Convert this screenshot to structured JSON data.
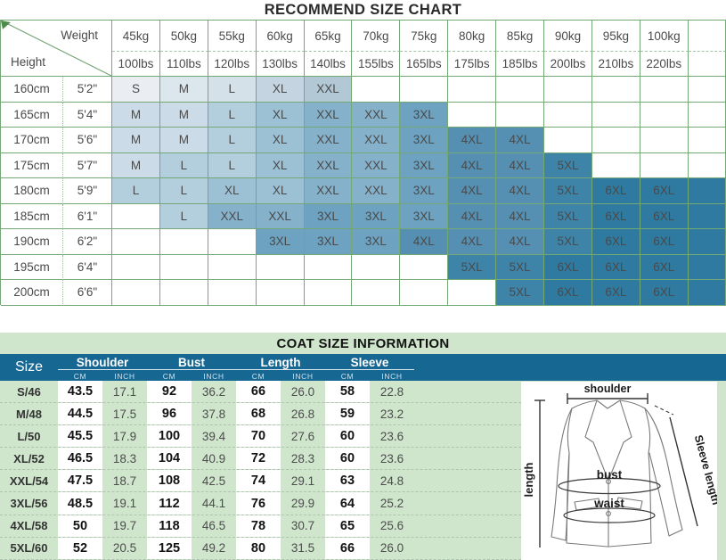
{
  "recommend_chart": {
    "title": "RECOMMEND SIZE CHART",
    "corner": {
      "weight_label": "Weight",
      "height_label": "Height"
    },
    "weight_columns": [
      {
        "kg": "45kg",
        "lbs": "100lbs"
      },
      {
        "kg": "50kg",
        "lbs": "110lbs"
      },
      {
        "kg": "55kg",
        "lbs": "120lbs"
      },
      {
        "kg": "60kg",
        "lbs": "130lbs"
      },
      {
        "kg": "65kg",
        "lbs": "140lbs"
      },
      {
        "kg": "70kg",
        "lbs": "155lbs"
      },
      {
        "kg": "75kg",
        "lbs": "165lbs"
      },
      {
        "kg": "80kg",
        "lbs": "175lbs"
      },
      {
        "kg": "85kg",
        "lbs": "185lbs"
      },
      {
        "kg": "90kg",
        "lbs": "200lbs"
      },
      {
        "kg": "95kg",
        "lbs": "210lbs"
      },
      {
        "kg": "100kg",
        "lbs": "220lbs"
      }
    ],
    "height_rows": [
      {
        "cm": "160cm",
        "ft": "5'2\"",
        "sizes": [
          "S",
          "M",
          "L",
          "XL",
          "XXL",
          "",
          "",
          "",
          "",
          "",
          "",
          ""
        ],
        "tail_filled": false
      },
      {
        "cm": "165cm",
        "ft": "5'4\"",
        "sizes": [
          "M",
          "M",
          "L",
          "XL",
          "XXL",
          "XXL",
          "3XL",
          "",
          "",
          "",
          "",
          ""
        ],
        "tail_filled": false
      },
      {
        "cm": "170cm",
        "ft": "5'6\"",
        "sizes": [
          "M",
          "M",
          "L",
          "XL",
          "XXL",
          "XXL",
          "3XL",
          "4XL",
          "4XL",
          "",
          "",
          ""
        ],
        "tail_filled": false
      },
      {
        "cm": "175cm",
        "ft": "5'7\"",
        "sizes": [
          "M",
          "L",
          "L",
          "XL",
          "XXL",
          "XXL",
          "3XL",
          "4XL",
          "4XL",
          "5XL",
          "",
          ""
        ],
        "tail_filled": false
      },
      {
        "cm": "180cm",
        "ft": "5'9\"",
        "sizes": [
          "L",
          "L",
          "XL",
          "XL",
          "XXL",
          "XXL",
          "3XL",
          "4XL",
          "4XL",
          "5XL",
          "6XL",
          "6XL"
        ],
        "tail_filled": true
      },
      {
        "cm": "185cm",
        "ft": "6'1\"",
        "sizes": [
          "",
          "L",
          "XXL",
          "XXL",
          "3XL",
          "3XL",
          "3XL",
          "4XL",
          "4XL",
          "5XL",
          "6XL",
          "6XL"
        ],
        "tail_filled": true
      },
      {
        "cm": "190cm",
        "ft": "6'2\"",
        "sizes": [
          "",
          "",
          "",
          "3XL",
          "3XL",
          "3XL",
          "4XL",
          "4XL",
          "4XL",
          "5XL",
          "6XL",
          "6XL"
        ],
        "tail_filled": true
      },
      {
        "cm": "195cm",
        "ft": "6'4\"",
        "sizes": [
          "",
          "",
          "",
          "",
          "",
          "",
          "",
          "5XL",
          "5XL",
          "6XL",
          "6XL",
          "6XL"
        ],
        "tail_filled": true
      },
      {
        "cm": "200cm",
        "ft": "6'6\"",
        "sizes": [
          "",
          "",
          "",
          "",
          "",
          "",
          "",
          "",
          "5XL",
          "6XL",
          "6XL",
          "6XL"
        ],
        "tail_filled": true
      }
    ],
    "size_cell_colors": {
      "S": "#e9eef3",
      "M": "#cbdce8",
      "L": "#b3cedd",
      "XL": "#9cc0d4",
      "XXL": "#86b1ca",
      "3XL": "#6da2c1",
      "4XL": "#5590b3",
      "5XL": "#3e84a9",
      "6XL": "#2f7aa0"
    },
    "first_row_cell_colors": {
      "S": "#eaeef2",
      "M": "#dce6ed",
      "L": "#d5e1e9",
      "XL": "#c4d5e1",
      "XXL": "#b2c8d5"
    }
  },
  "coat_table": {
    "title": "COAT SIZE INFORMATION",
    "size_header": "Size",
    "unit_cm": "CM",
    "unit_inch": "INCH",
    "measure_groups": [
      "Shoulder",
      "Bust",
      "Length",
      "Sleeve"
    ],
    "rows": [
      {
        "size": "S/46",
        "values": [
          "43.5",
          "17.1",
          "92",
          "36.2",
          "66",
          "26.0",
          "58",
          "22.8"
        ]
      },
      {
        "size": "M/48",
        "values": [
          "44.5",
          "17.5",
          "96",
          "37.8",
          "68",
          "26.8",
          "59",
          "23.2"
        ]
      },
      {
        "size": "L/50",
        "values": [
          "45.5",
          "17.9",
          "100",
          "39.4",
          "70",
          "27.6",
          "60",
          "23.6"
        ]
      },
      {
        "size": "XL/52",
        "values": [
          "46.5",
          "18.3",
          "104",
          "40.9",
          "72",
          "28.3",
          "60",
          "23.6"
        ]
      },
      {
        "size": "XXL/54",
        "values": [
          "47.5",
          "18.7",
          "108",
          "42.5",
          "74",
          "29.1",
          "63",
          "24.8"
        ]
      },
      {
        "size": "3XL/56",
        "values": [
          "48.5",
          "19.1",
          "112",
          "44.1",
          "76",
          "29.9",
          "64",
          "25.2"
        ]
      },
      {
        "size": "4XL/58",
        "values": [
          "50",
          "19.7",
          "118",
          "46.5",
          "78",
          "30.7",
          "65",
          "25.6"
        ]
      },
      {
        "size": "5XL/60",
        "values": [
          "52",
          "20.5",
          "125",
          "49.2",
          "80",
          "31.5",
          "66",
          "26.0"
        ]
      }
    ]
  },
  "diagram": {
    "shoulder_label": "shoulder",
    "length_label": "length",
    "bust_label": "bust",
    "waist_label": "waist",
    "sleeve_label": "Sleeve length"
  },
  "colors": {
    "grid_green": "#74a874",
    "section_bg": "#cfe6cd",
    "band_bg": "#176793",
    "tail_teal": "#2f7aa0",
    "title_text": "#2a2a2a"
  }
}
